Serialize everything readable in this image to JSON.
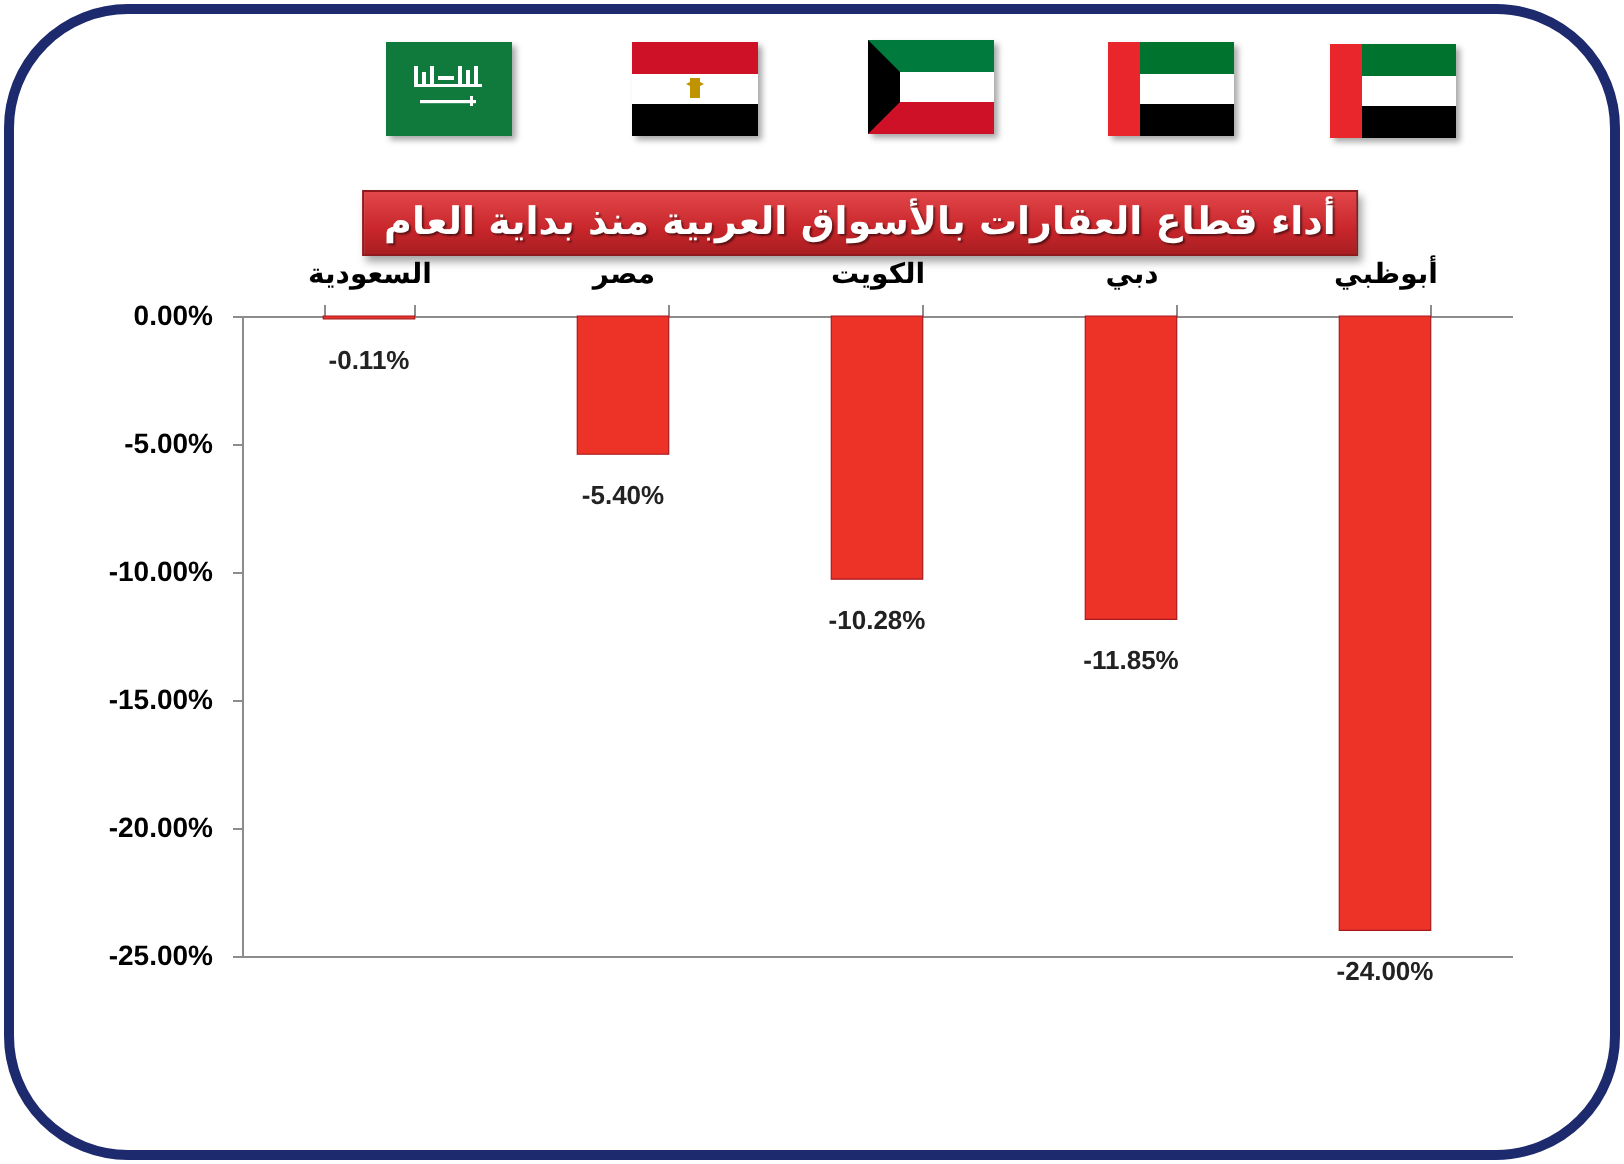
{
  "chart_data": {
    "type": "bar",
    "title": "أداء قطاع العقارات بالأسواق العربية منذ بداية العام",
    "categories": [
      "السعودية",
      "مصر",
      "الكويت",
      "دبي",
      "أبوظبي"
    ],
    "values": [
      -0.11,
      -5.4,
      -10.28,
      -11.85,
      -24.0
    ],
    "value_labels": [
      "-0.11%",
      "-5.40%",
      "-10.28%",
      "-11.85%",
      "-24.00%"
    ],
    "color": "#ed3228",
    "ylim": [
      -25,
      0
    ],
    "yticks": [
      {
        "value": 0,
        "label": "0.00%"
      },
      {
        "value": -5,
        "label": "-5.00%"
      },
      {
        "value": -10,
        "label": "-10.00%"
      },
      {
        "value": -15,
        "label": "-15.00%"
      },
      {
        "value": -20,
        "label": "-20.00%"
      },
      {
        "value": -25,
        "label": "-25.00%"
      }
    ]
  }
}
